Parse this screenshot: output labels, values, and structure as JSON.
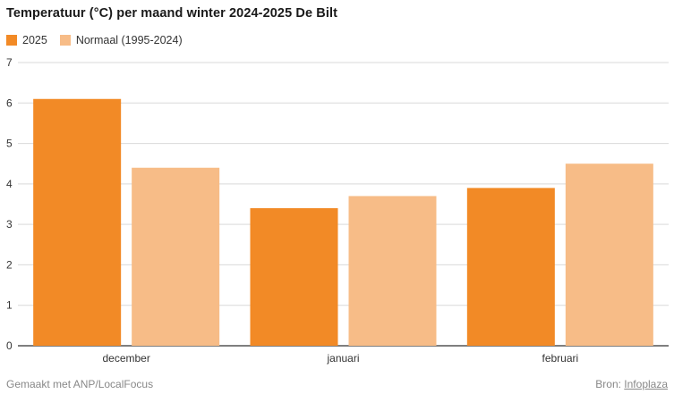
{
  "title": "Temperatuur (°C) per maand winter 2024-2025 De Bilt",
  "legend": [
    {
      "label": "2025",
      "color": "#F28A26"
    },
    {
      "label": "Normaal (1995-2024)",
      "color": "#F7BC87"
    }
  ],
  "footer": {
    "credit": "Gemaakt met ANP/LocalFocus",
    "source_label": "Bron:",
    "source_name": "Infoplaza"
  },
  "chart_data": {
    "type": "bar",
    "categories": [
      "december",
      "januari",
      "februari"
    ],
    "series": [
      {
        "name": "2025",
        "values": [
          6.1,
          3.4,
          3.9
        ],
        "color": "#F28A26"
      },
      {
        "name": "Normaal (1995-2024)",
        "values": [
          4.4,
          3.7,
          4.5
        ],
        "color": "#F7BC87"
      }
    ],
    "ylim": [
      0,
      7
    ],
    "yticks": [
      0,
      1,
      2,
      3,
      4,
      5,
      6,
      7
    ],
    "grid": true,
    "legend_position": "top-left"
  }
}
